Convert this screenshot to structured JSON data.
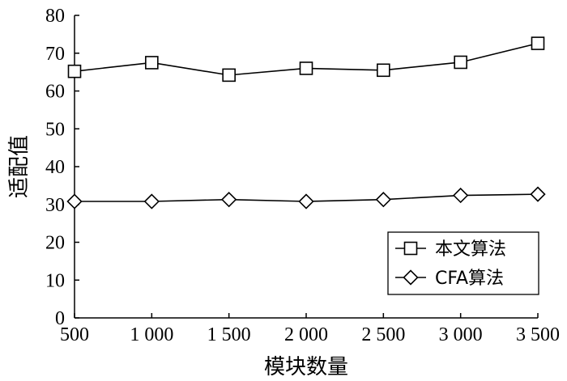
{
  "chart_data": {
    "type": "line",
    "x": [
      500,
      1000,
      1500,
      2000,
      2500,
      3000,
      3500
    ],
    "xtick_labels": [
      "500",
      "1 000",
      "1 500",
      "2 000",
      "2 500",
      "3 000",
      "3 500"
    ],
    "xlim": [
      500,
      3500
    ],
    "ylim": [
      0,
      80
    ],
    "yticks": [
      0,
      10,
      20,
      30,
      40,
      50,
      60,
      70,
      80
    ],
    "xlabel": "模块数量",
    "ylabel": "适配值",
    "grid": false,
    "legend_position": "bottom-right",
    "series": [
      {
        "name": "本文算法",
        "marker": "square",
        "color": "#000000",
        "values": [
          65.2,
          67.5,
          64.2,
          66.0,
          65.5,
          67.6,
          72.6
        ]
      },
      {
        "name": "CFA算法",
        "marker": "diamond",
        "color": "#000000",
        "values": [
          30.8,
          30.8,
          31.3,
          30.8,
          31.3,
          32.4,
          32.7
        ]
      }
    ]
  }
}
